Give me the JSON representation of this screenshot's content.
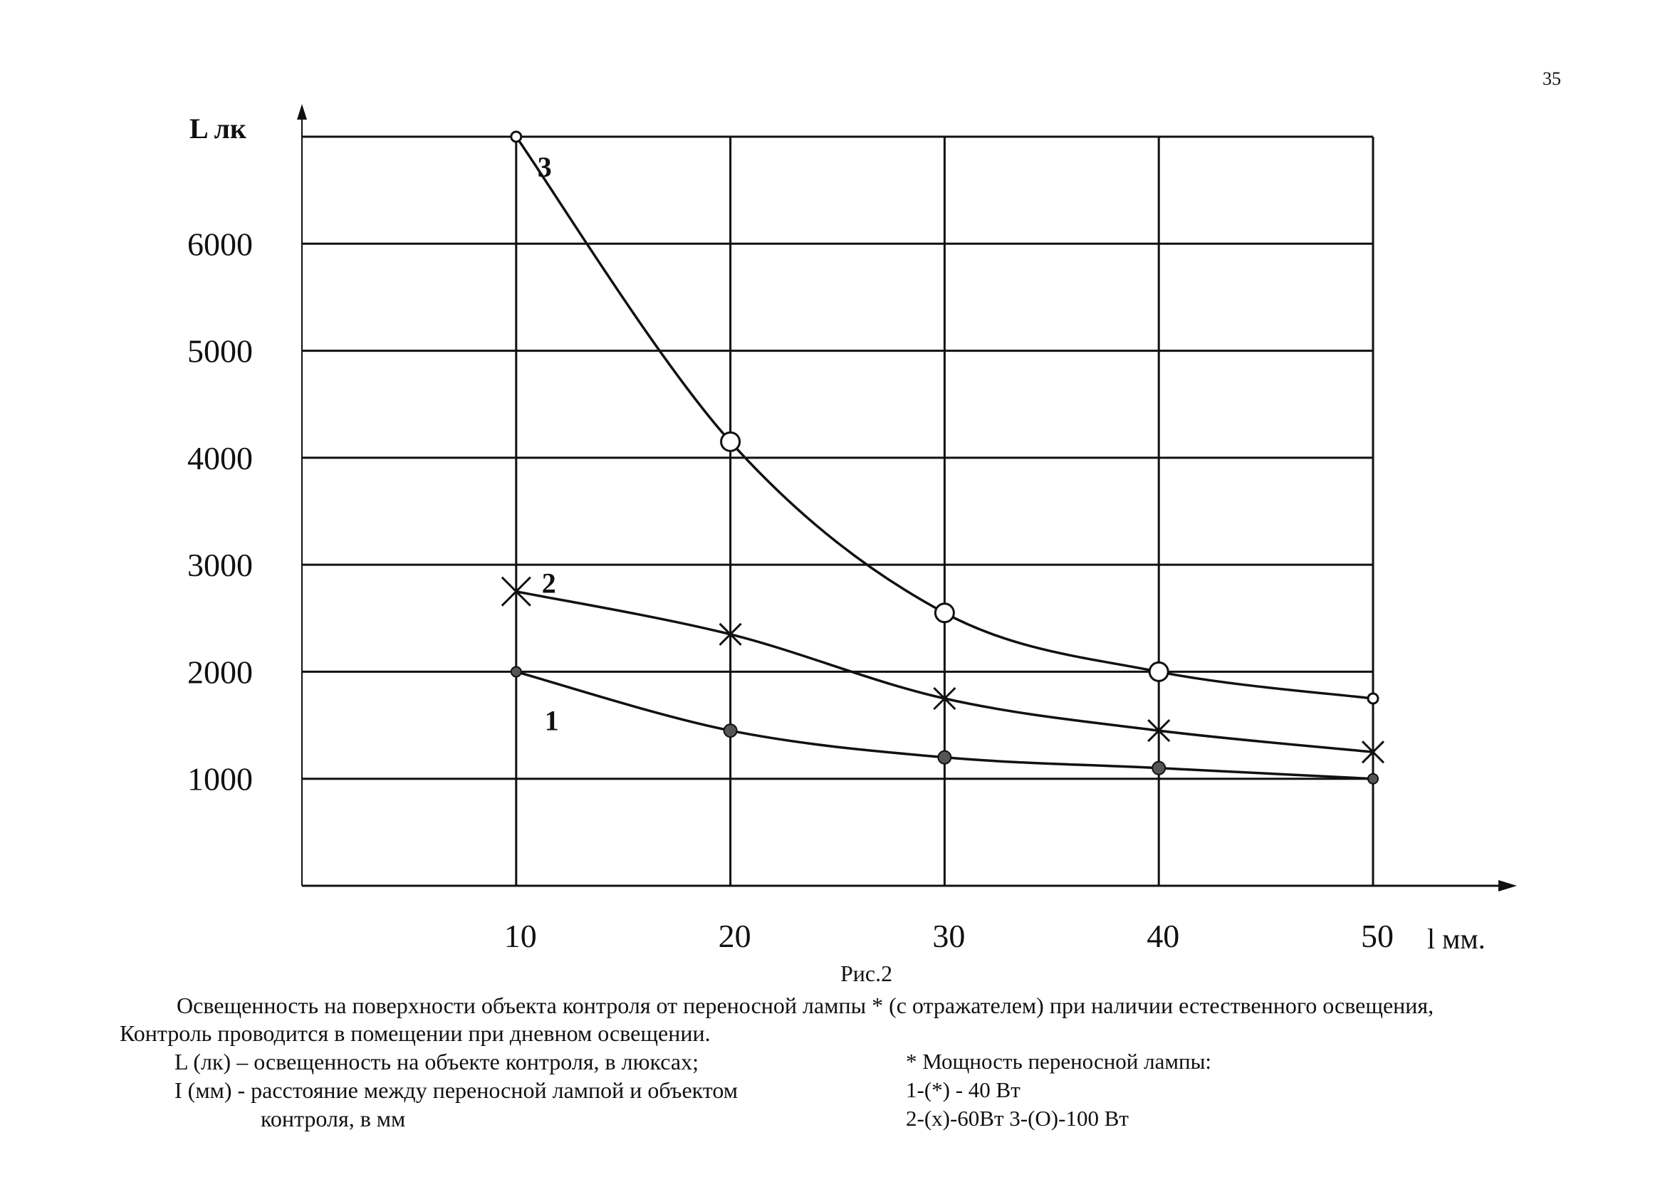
{
  "page": {
    "number": "35"
  },
  "chart_data": {
    "type": "line",
    "ylabel": "L лк",
    "xlabel": "l мм.",
    "x": [
      10,
      20,
      30,
      40,
      50
    ],
    "x_ticks": [
      "10",
      "20",
      "30",
      "40",
      "50"
    ],
    "y_ticks": [
      "1000",
      "2000",
      "3000",
      "4000",
      "5000",
      "6000"
    ],
    "xlim": [
      0,
      55
    ],
    "ylim": [
      0,
      7000
    ],
    "grid": true,
    "series": [
      {
        "name": "1",
        "marker": "dot",
        "values": [
          2000,
          1450,
          1200,
          1100,
          1000
        ]
      },
      {
        "name": "2",
        "marker": "cross",
        "values": [
          2750,
          2350,
          1750,
          1450,
          1250
        ]
      },
      {
        "name": "3",
        "marker": "circle",
        "values": [
          7000,
          4150,
          2550,
          2000,
          1750
        ]
      }
    ]
  },
  "caption": {
    "figure": "Рис.2",
    "line1": "Освещенность на поверхности объекта контроля от переносной лампы * (с отражателем) при наличии естественного освещения,",
    "line2": "Контроль проводится в помещении при дневном освещении.",
    "def_L": "L (лк) – освещенность на объекте контроля, в люксах;",
    "def_I_1": "I (мм) - расстояние между переносной лампой и объектом",
    "def_I_2": "контроля, в мм"
  },
  "legend": {
    "title": "* Мощность переносной лампы:",
    "item1": "1-(*) - 40 Вт",
    "item23": "2-(х)-60Вт 3-(О)-100 Вт"
  }
}
